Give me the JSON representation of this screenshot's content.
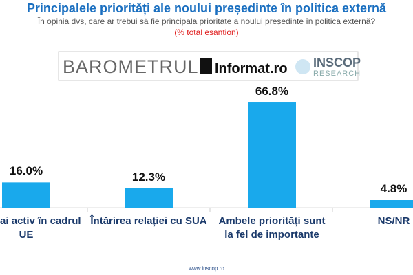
{
  "chart_data": {
    "type": "bar",
    "title": "Principalele priorități ale noului președinte în politica externă",
    "subtitle": "În opinia dvs, care ar trebui să fie principala prioritate a noului președinte în politica externă?",
    "note": "(% total esantion)",
    "banner": {
      "left": "BAROMETRUL",
      "middle": "Informat.ro",
      "right_top": "INSCOP",
      "right_bottom": "RESEARCH"
    },
    "categories": [
      "Rol mai activ în cadrul UE",
      "Întărirea relației cu SUA",
      "Ambele priorități sunt la fel de importante",
      "NS/NR"
    ],
    "values": [
      16.0,
      12.3,
      66.8,
      4.8
    ],
    "value_labels": [
      "16.0%",
      "12.3%",
      "66.8%",
      "4.8%"
    ],
    "color": "#19a9ec",
    "footer": "www.inscop.ro"
  }
}
